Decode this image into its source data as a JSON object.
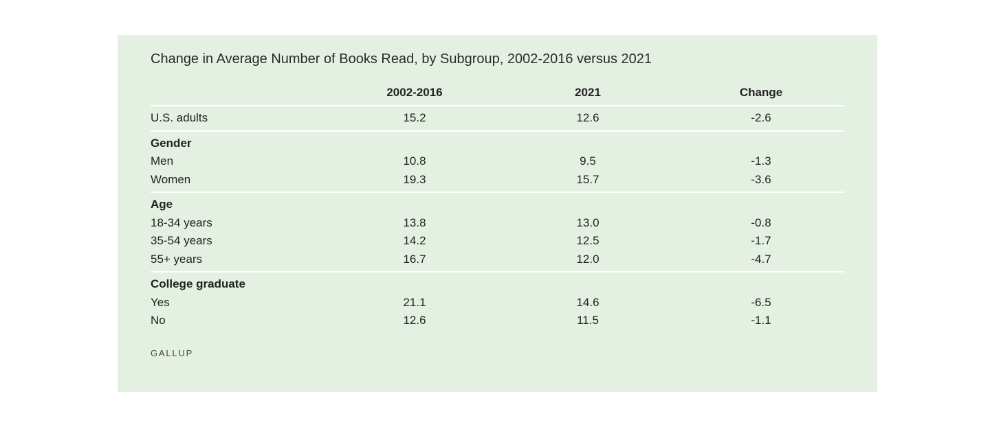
{
  "chart_data": {
    "type": "table",
    "title": "Change in Average Number of Books Read, by Subgroup, 2002-2016 versus 2021",
    "columns": [
      "2002-2016",
      "2021",
      "Change"
    ],
    "overall": {
      "label": "U.S. adults",
      "values": [
        "15.2",
        "12.6",
        "-2.6"
      ]
    },
    "groups": [
      {
        "name": "Gender",
        "rows": [
          {
            "label": "Men",
            "values": [
              "10.8",
              "9.5",
              "-1.3"
            ]
          },
          {
            "label": "Women",
            "values": [
              "19.3",
              "15.7",
              "-3.6"
            ]
          }
        ]
      },
      {
        "name": "Age",
        "rows": [
          {
            "label": "18-34 years",
            "values": [
              "13.8",
              "13.0",
              "-0.8"
            ]
          },
          {
            "label": "35-54 years",
            "values": [
              "14.2",
              "12.5",
              "-1.7"
            ]
          },
          {
            "label": "55+ years",
            "values": [
              "16.7",
              "12.0",
              "-4.7"
            ]
          }
        ]
      },
      {
        "name": "College graduate",
        "rows": [
          {
            "label": "Yes",
            "values": [
              "21.1",
              "14.6",
              "-6.5"
            ]
          },
          {
            "label": "No",
            "values": [
              "12.6",
              "11.5",
              "-1.1"
            ]
          }
        ]
      }
    ],
    "source": "GALLUP"
  },
  "colors": {
    "panel_background": "#e4f1e2",
    "divider": "#ffffff",
    "text": "#222222"
  }
}
